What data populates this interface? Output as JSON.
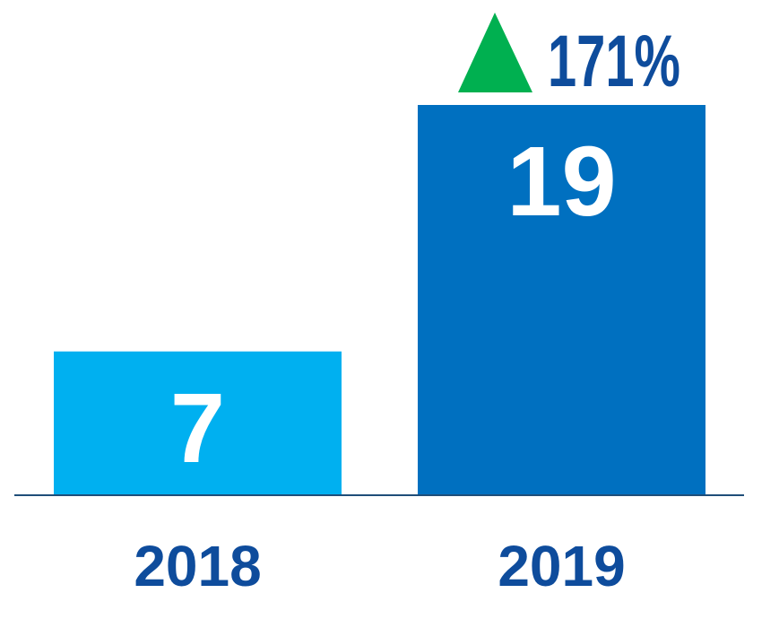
{
  "chart_data": {
    "type": "bar",
    "categories": [
      "2018",
      "2019"
    ],
    "values": [
      7,
      19
    ],
    "bar_colors": [
      "#00B0F0",
      "#0070C0"
    ],
    "value_label_color": "#FFFFFF",
    "axis_label_color": "#0E4C9C",
    "baseline_color": "#1F4E79",
    "ylim": [
      0,
      19
    ],
    "grid": false,
    "change": {
      "label": "171%",
      "direction": "up",
      "arrow_color": "#00B050",
      "text_color": "#0E4C9C"
    }
  }
}
